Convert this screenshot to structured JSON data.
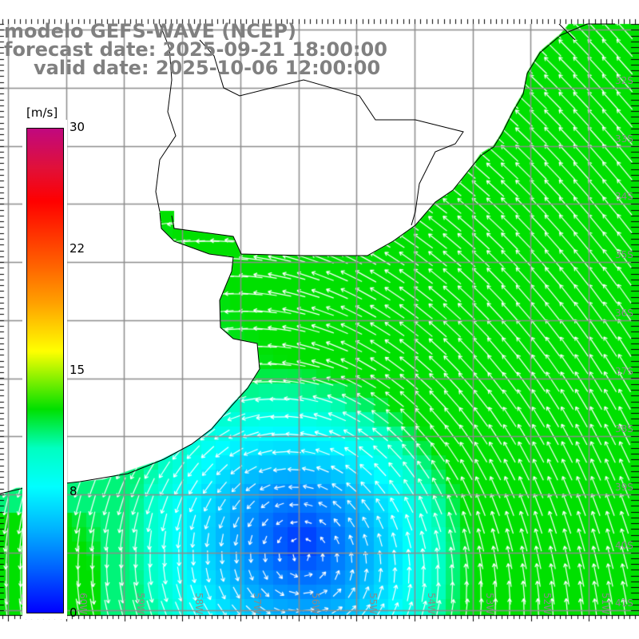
{
  "title": {
    "line1": "modelo GEFS-WAVE (NCEP)",
    "line2": "forecast date: 2025-09-21 18:00:00",
    "line3": "valid date: 2025-10-06 12:00:00"
  },
  "colorbar": {
    "unit": "[m/s]",
    "ticks": [
      "30",
      "22",
      "15",
      "8",
      "0"
    ],
    "colors": [
      "#c0087f",
      "#ff0000",
      "#ffff00",
      "#00e000",
      "#00ffff",
      "#0000ff"
    ]
  },
  "axes": {
    "lat_labels": [
      "32S",
      "33S",
      "34S",
      "35S",
      "36S",
      "37S",
      "38S",
      "39S",
      "40S",
      "41S"
    ],
    "lon_labels": [
      "61W",
      "60W",
      "59W",
      "58W",
      "57W",
      "56W",
      "55W",
      "54W",
      "53W",
      "52W",
      "51W"
    ]
  },
  "field": {
    "variable": "wind speed and direction",
    "min_speed": 0,
    "max_speed": 30,
    "land_color": "#ffffff",
    "coast_color": "#000000",
    "grid_color": "#8c8c8c",
    "arrow_color": "#ffffff"
  }
}
